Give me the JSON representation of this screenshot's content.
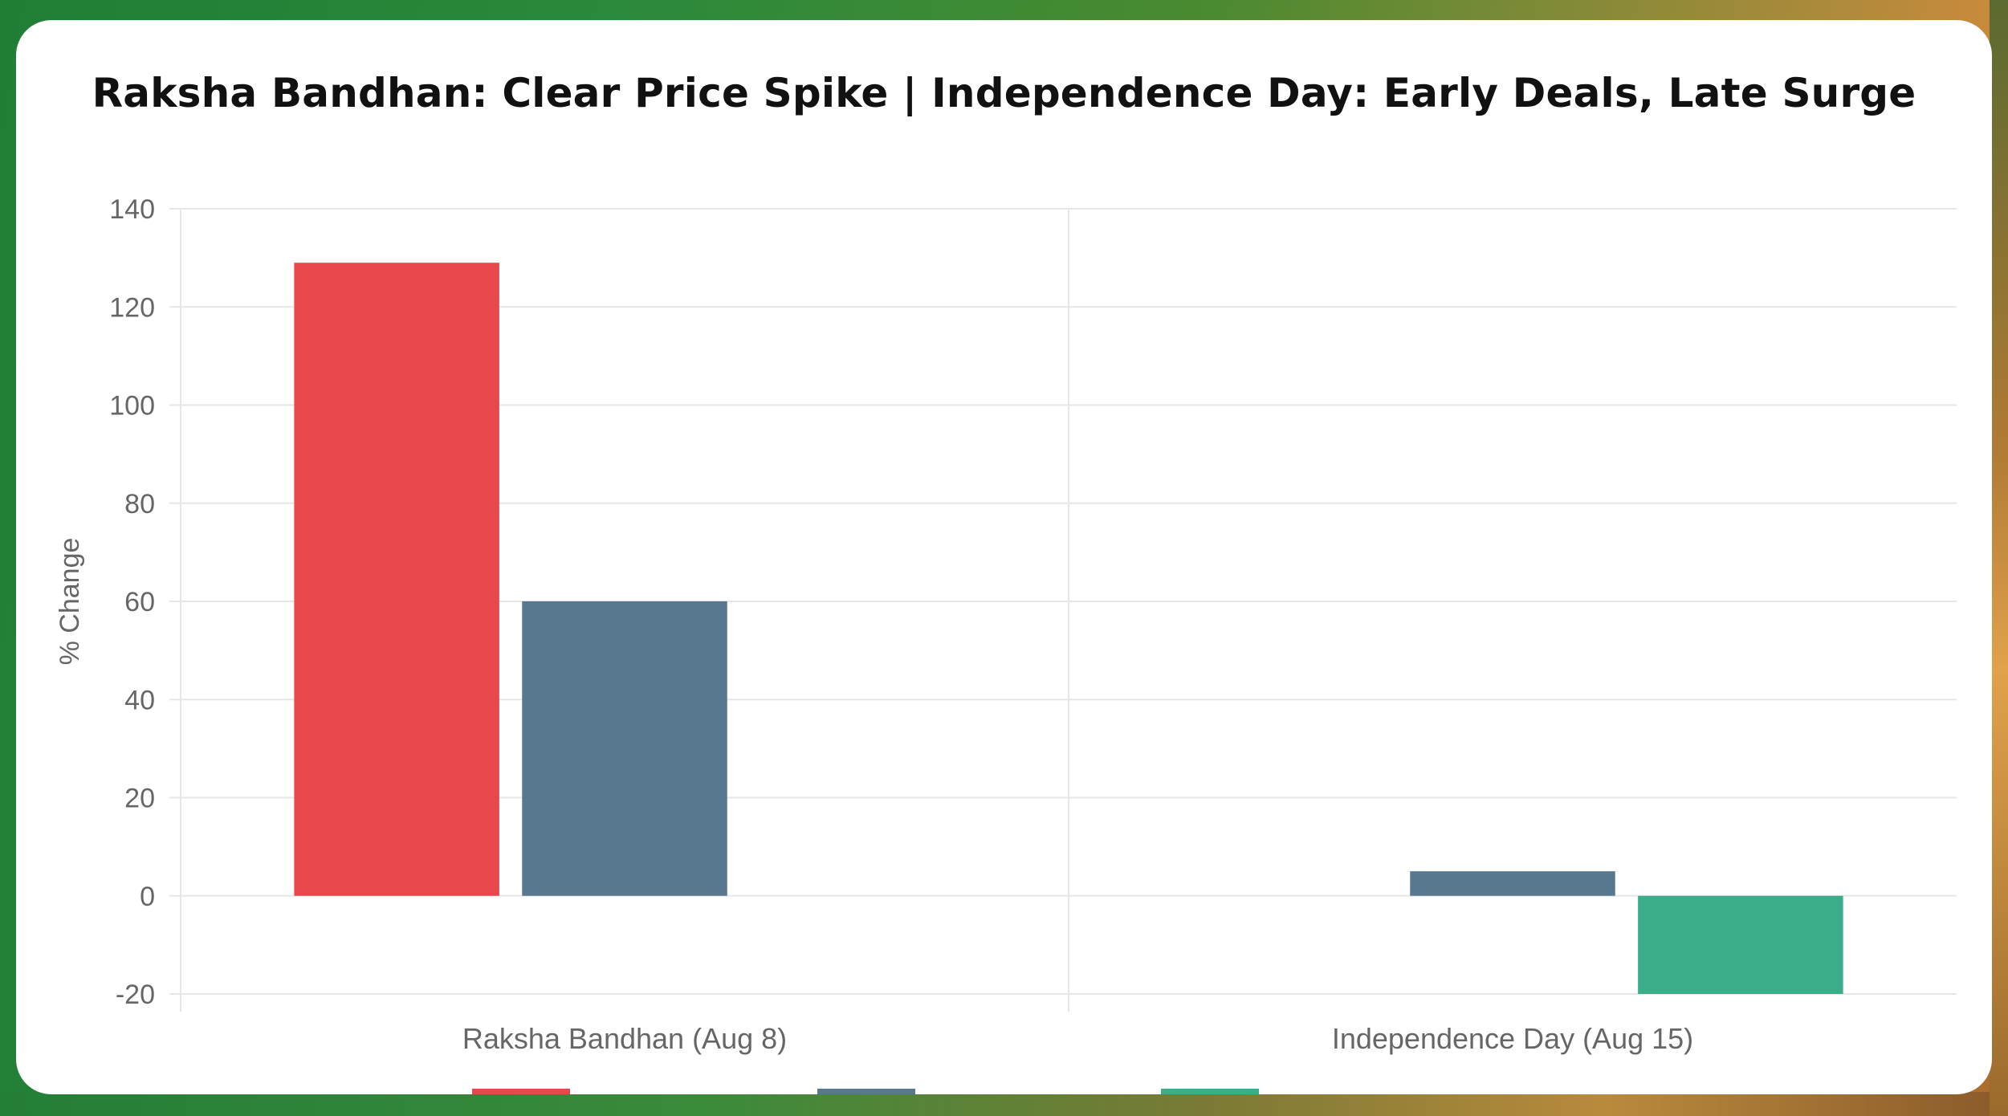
{
  "colors": {
    "firstSeries": "#e8474c",
    "secondSeries": "#57788f",
    "thirdSeries": "#3dac8a",
    "grid": "#e6e6e6",
    "axisText": "#666666",
    "title": "#111111"
  },
  "chart_data": {
    "type": "bar",
    "title": "Raksha Bandhan: Clear Price Spike | Independence Day: Early Deals, Late Surge",
    "xlabel": "",
    "ylabel": "% Change",
    "ylim": [
      -20,
      140
    ],
    "yticks": [
      140,
      120,
      100,
      80,
      60,
      40,
      20,
      0,
      -20
    ],
    "grid": true,
    "legend_position": "bottom (cut off)",
    "categories": [
      "Raksha Bandhan (Aug 8)",
      "Independence Day (Aug 15)"
    ],
    "series": [
      {
        "name": "",
        "color": "#e8474c",
        "values": [
          129,
          null
        ]
      },
      {
        "name": "",
        "color": "#57788f",
        "values": [
          60,
          5
        ]
      },
      {
        "name": "",
        "color": "#3dac8a",
        "values": [
          null,
          -20
        ]
      }
    ]
  }
}
